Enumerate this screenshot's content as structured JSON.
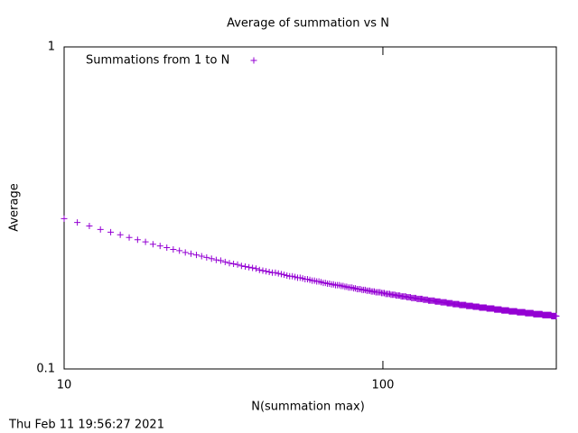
{
  "chart_data": {
    "type": "scatter",
    "title": "Average of summation vs N",
    "xlabel": "N(summation max)",
    "ylabel": "Average",
    "date_stamp": "Thu Feb 11 19:56:27 2021",
    "xlog": true,
    "ylog": true,
    "xlim": [
      10,
      350
    ],
    "ylim": [
      0.1,
      1
    ],
    "xticks": [
      10,
      100
    ],
    "yticks": [
      0.1,
      1
    ],
    "legend": "top-left",
    "series": [
      {
        "name": "Summations from 1 to N",
        "color": "#9400d3",
        "x": [
          10,
          11,
          12,
          13,
          14,
          15,
          16,
          17,
          18,
          19,
          20,
          21,
          22,
          23,
          24,
          25,
          26,
          27,
          28,
          29,
          30,
          31,
          32,
          33,
          34,
          35,
          36,
          37,
          38,
          39,
          40,
          41,
          42,
          43,
          44,
          45,
          46,
          47,
          48,
          49,
          50,
          51,
          52,
          53,
          54,
          55,
          56,
          57,
          58,
          59,
          60,
          61,
          62,
          63,
          64,
          65,
          66,
          67,
          68,
          69,
          70,
          71,
          72,
          73,
          74,
          75,
          76,
          77,
          78,
          79,
          80,
          81,
          82,
          83,
          84,
          85,
          86,
          87,
          88,
          89,
          90,
          91,
          92,
          93,
          94,
          95,
          96,
          97,
          98,
          99,
          100,
          101,
          102,
          103,
          104,
          105,
          106,
          107,
          108,
          109,
          110,
          111,
          112,
          113,
          114,
          115,
          116,
          117,
          118,
          119,
          120,
          121,
          122,
          123,
          124,
          125,
          126,
          127,
          128,
          129,
          130,
          131,
          132,
          133,
          134,
          135,
          136,
          137,
          138,
          139,
          140,
          141,
          142,
          143,
          144,
          145,
          146,
          147,
          148,
          149,
          150,
          151,
          152,
          153,
          154,
          155,
          156,
          157,
          158,
          159,
          160,
          161,
          162,
          163,
          164,
          165,
          166,
          167,
          168,
          169,
          170,
          171,
          172,
          173,
          174,
          175,
          176,
          177,
          178,
          179,
          180,
          181,
          182,
          183,
          184,
          185,
          186,
          187,
          188,
          189,
          190,
          191,
          192,
          193,
          194,
          195,
          196,
          197,
          198,
          199,
          200,
          201,
          202,
          203,
          204,
          205,
          206,
          207,
          208,
          209,
          210,
          211,
          212,
          213,
          214,
          215,
          216,
          217,
          218,
          219,
          220,
          221,
          222,
          223,
          224,
          225,
          226,
          227,
          228,
          229,
          230,
          231,
          232,
          233,
          234,
          235,
          236,
          237,
          238,
          239,
          240,
          241,
          242,
          243,
          244,
          245,
          246,
          247,
          248,
          249,
          250,
          251,
          252,
          253,
          254,
          255,
          256,
          257,
          258,
          259,
          260,
          261,
          262,
          263,
          264,
          265,
          266,
          267,
          268,
          269,
          270,
          271,
          272,
          273,
          274,
          275,
          276,
          277,
          278,
          279,
          280,
          281,
          282,
          283,
          284,
          285,
          286,
          287,
          288,
          289,
          290,
          291,
          292,
          293,
          294,
          295,
          296,
          297,
          298,
          299,
          300,
          301,
          302,
          303,
          304,
          305,
          306,
          307,
          308,
          309,
          310,
          311,
          312,
          313,
          314,
          315,
          316,
          317,
          318,
          319,
          320,
          321,
          322,
          323,
          324,
          325,
          326,
          327,
          328,
          329,
          330,
          331,
          332,
          333,
          334,
          335,
          336,
          337,
          338,
          339,
          340,
          341,
          342,
          343,
          344,
          345,
          346,
          347,
          348,
          349,
          350
        ],
        "values": [
          0.293,
          0.285,
          0.278,
          0.271,
          0.266,
          0.261,
          0.256,
          0.252,
          0.248,
          0.244,
          0.241,
          0.238,
          0.235,
          0.233,
          0.23,
          0.228,
          0.226,
          0.224,
          0.222,
          0.22,
          0.218,
          0.217,
          0.215,
          0.213,
          0.212,
          0.211,
          0.209,
          0.208,
          0.207,
          0.206,
          0.205,
          0.203,
          0.202,
          0.201,
          0.2,
          0.199,
          0.199,
          0.198,
          0.197,
          0.196,
          0.195,
          0.194,
          0.194,
          0.193,
          0.192,
          0.192,
          0.191,
          0.19,
          0.19,
          0.189,
          0.188,
          0.188,
          0.187,
          0.187,
          0.186,
          0.185,
          0.185,
          0.184,
          0.184,
          0.183,
          0.183,
          0.182,
          0.182,
          0.182,
          0.181,
          0.181,
          0.18,
          0.18,
          0.179,
          0.179,
          0.179,
          0.178,
          0.178,
          0.177,
          0.177,
          0.177,
          0.176,
          0.176,
          0.176,
          0.175,
          0.175,
          0.175,
          0.174,
          0.174,
          0.174,
          0.173,
          0.173,
          0.173,
          0.173,
          0.172,
          0.172,
          0.172,
          0.171,
          0.171,
          0.171,
          0.171,
          0.17,
          0.17,
          0.17,
          0.17,
          0.169,
          0.169,
          0.169,
          0.169,
          0.168,
          0.168,
          0.168,
          0.168,
          0.168,
          0.167,
          0.167,
          0.167,
          0.167,
          0.166,
          0.166,
          0.166,
          0.166,
          0.166,
          0.165,
          0.165,
          0.165,
          0.165,
          0.165,
          0.165,
          0.164,
          0.164,
          0.164,
          0.164,
          0.164,
          0.163,
          0.163,
          0.163,
          0.163,
          0.163,
          0.163,
          0.163,
          0.162,
          0.162,
          0.162,
          0.162,
          0.162,
          0.162,
          0.161,
          0.161,
          0.161,
          0.161,
          0.161,
          0.161,
          0.161,
          0.16,
          0.16,
          0.16,
          0.16,
          0.16,
          0.16,
          0.16,
          0.159,
          0.159,
          0.159,
          0.159,
          0.159,
          0.159,
          0.159,
          0.159,
          0.158,
          0.158,
          0.158,
          0.158,
          0.158,
          0.158,
          0.158,
          0.158,
          0.158,
          0.157,
          0.157,
          0.157,
          0.157,
          0.157,
          0.157,
          0.157,
          0.157,
          0.157,
          0.156,
          0.156,
          0.156,
          0.156,
          0.156,
          0.156,
          0.156,
          0.156,
          0.156,
          0.155,
          0.155,
          0.155,
          0.155,
          0.155,
          0.155,
          0.155,
          0.155,
          0.155,
          0.155,
          0.155,
          0.154,
          0.154,
          0.154,
          0.154,
          0.154,
          0.154,
          0.154,
          0.154,
          0.154,
          0.154,
          0.154,
          0.154,
          0.153,
          0.153,
          0.153,
          0.153,
          0.153,
          0.153,
          0.153,
          0.153,
          0.153,
          0.153,
          0.153,
          0.153,
          0.152,
          0.152,
          0.152,
          0.152,
          0.152,
          0.152,
          0.152,
          0.152,
          0.152,
          0.152,
          0.152,
          0.152,
          0.152,
          0.151,
          0.151,
          0.151,
          0.151,
          0.151,
          0.151,
          0.151,
          0.151,
          0.151,
          0.151,
          0.151,
          0.151,
          0.151,
          0.151,
          0.151,
          0.15,
          0.15,
          0.15,
          0.15,
          0.15,
          0.15,
          0.15,
          0.15,
          0.15,
          0.15,
          0.15,
          0.15,
          0.15,
          0.15,
          0.15,
          0.15,
          0.149,
          0.149,
          0.149,
          0.149,
          0.149,
          0.149,
          0.149,
          0.149,
          0.149,
          0.149,
          0.149,
          0.149,
          0.149,
          0.149,
          0.149,
          0.149,
          0.149,
          0.148,
          0.148,
          0.148,
          0.148,
          0.148,
          0.148,
          0.148,
          0.148,
          0.148,
          0.148,
          0.148,
          0.148,
          0.148,
          0.148,
          0.148,
          0.148,
          0.148,
          0.148,
          0.148,
          0.148,
          0.147,
          0.147,
          0.147,
          0.147,
          0.147,
          0.147,
          0.147,
          0.147,
          0.147,
          0.147,
          0.147,
          0.147,
          0.147,
          0.147,
          0.147,
          0.147,
          0.147,
          0.147,
          0.147,
          0.147,
          0.147,
          0.146,
          0.146,
          0.146,
          0.146,
          0.146,
          0.146,
          0.146,
          0.146,
          0.146,
          0.146,
          0.146,
          0.146,
          0.146
        ]
      }
    ]
  }
}
